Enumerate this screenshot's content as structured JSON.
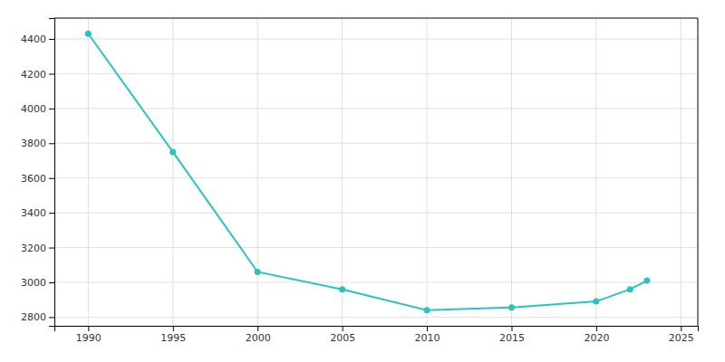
{
  "chart_data": {
    "type": "line",
    "x": [
      1990,
      1995,
      2000,
      2005,
      2010,
      2015,
      2020,
      2022,
      2023
    ],
    "values": [
      4430,
      3750,
      3060,
      2960,
      2840,
      2855,
      2890,
      2960,
      3010
    ],
    "color": "#29c4c0",
    "marker": "circle",
    "xlim": [
      1988,
      2026
    ],
    "ylim": [
      2750,
      4520
    ],
    "xticks": [
      1990,
      1995,
      2000,
      2005,
      2010,
      2015,
      2020,
      2025
    ],
    "yticks": [
      2800,
      3000,
      3200,
      3400,
      3600,
      3800,
      4000,
      4200,
      4400
    ],
    "grid": true
  }
}
